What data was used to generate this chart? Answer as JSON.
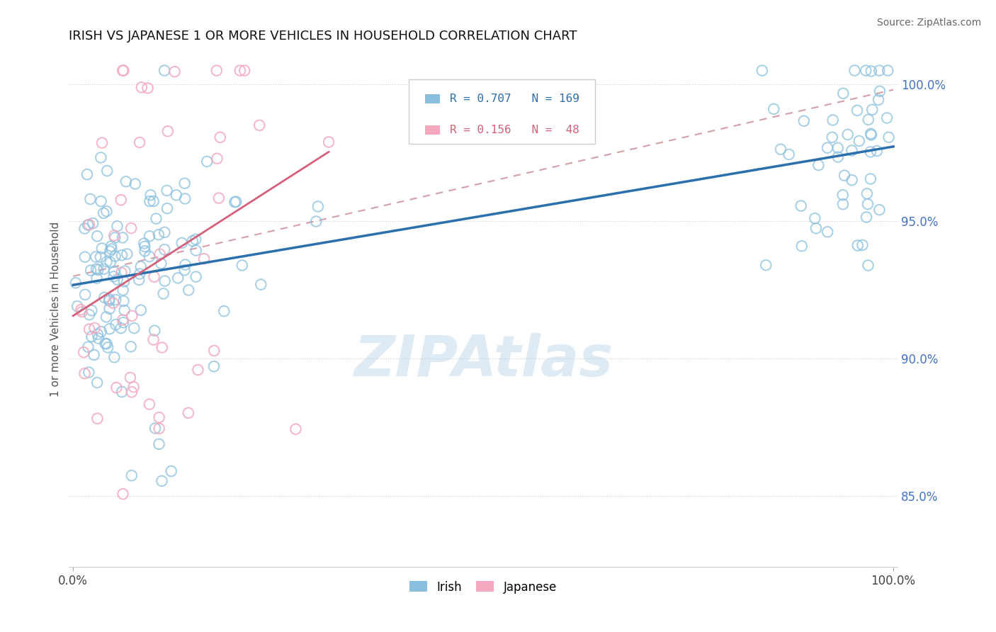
{
  "title": "IRISH VS JAPANESE 1 OR MORE VEHICLES IN HOUSEHOLD CORRELATION CHART",
  "source": "Source: ZipAtlas.com",
  "ylabel": "1 or more Vehicles in Household",
  "yaxis_labels": [
    "85.0%",
    "90.0%",
    "95.0%",
    "100.0%"
  ],
  "yaxis_values": [
    0.85,
    0.9,
    0.95,
    1.0
  ],
  "legend_labels": [
    "Irish",
    "Japanese"
  ],
  "legend_r": [
    0.707,
    0.156
  ],
  "legend_n": [
    169,
    48
  ],
  "blue_color": "#88bfde",
  "pink_color": "#f4a8be",
  "blue_line_color": "#2c6fad",
  "pink_line_color": "#d4607a",
  "dashed_line_color": "#d4a0a8",
  "watermark": "ZIPAtlas",
  "ylim_min": 0.824,
  "ylim_max": 1.012,
  "xlim_min": -0.005,
  "xlim_max": 1.005
}
